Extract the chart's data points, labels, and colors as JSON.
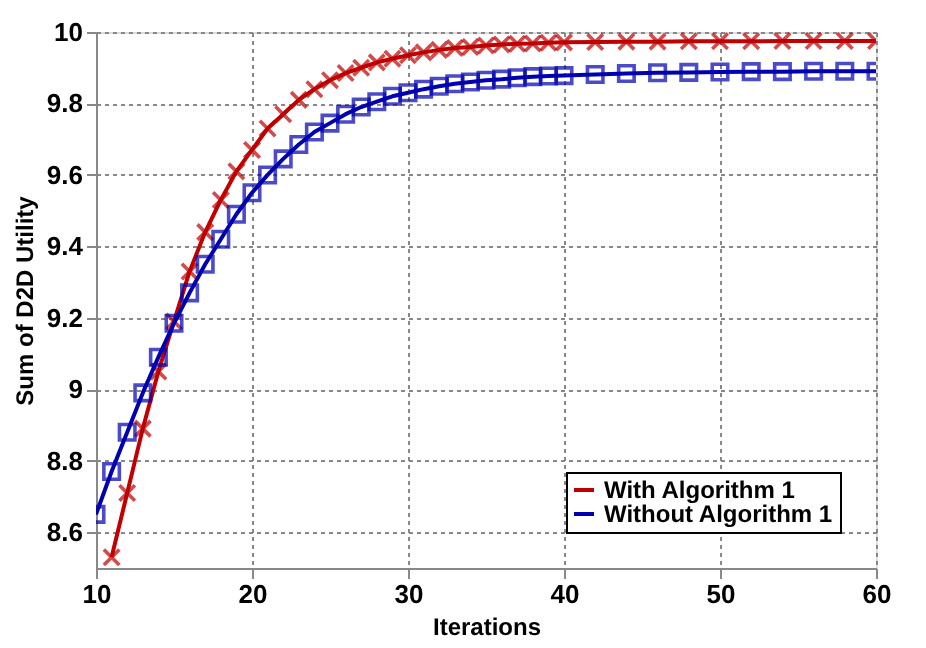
{
  "chart_data": {
    "type": "line",
    "xlabel": "Iterations",
    "ylabel": "Sum of D2D Utility",
    "xlim": [
      10,
      60
    ],
    "xticks": [
      10,
      20,
      30,
      40,
      50,
      60
    ],
    "ylim": [
      8.5,
      10
    ],
    "yticks": [
      8.6,
      8.8,
      9,
      9.2,
      9.4,
      9.6,
      9.8,
      10
    ],
    "grid": true,
    "legend": "bottom right",
    "line_style": "solid",
    "series": [
      {
        "name": "With Algorithm 1",
        "color": "#c00000",
        "marker": "cross",
        "x": [
          11,
          12,
          13,
          14,
          15,
          16,
          17,
          18,
          19,
          20,
          21,
          22,
          23,
          24,
          25,
          26,
          27,
          28,
          29,
          30,
          31,
          32,
          33,
          34,
          35,
          36,
          37,
          38,
          39,
          40,
          42,
          44,
          46,
          48,
          50,
          52,
          54,
          56,
          58,
          60
        ],
        "values": [
          8.53,
          8.71,
          8.89,
          9.05,
          9.19,
          9.33,
          9.44,
          9.53,
          9.61,
          9.67,
          9.73,
          9.77,
          9.81,
          9.84,
          9.865,
          9.885,
          9.9,
          9.915,
          9.925,
          9.935,
          9.943,
          9.95,
          9.955,
          9.958,
          9.962,
          9.965,
          9.967,
          9.968,
          9.97,
          9.971,
          9.972,
          9.973,
          9.973,
          9.974,
          9.974,
          9.974,
          9.975,
          9.975,
          9.975,
          9.975
        ]
      },
      {
        "name": "Without Algorithm 1",
        "color": "#0000b0",
        "marker": "square",
        "x": [
          10,
          11,
          12,
          13,
          14,
          15,
          16,
          17,
          18,
          19,
          20,
          21,
          22,
          23,
          24,
          25,
          26,
          27,
          28,
          29,
          30,
          31,
          32,
          33,
          34,
          35,
          36,
          37,
          38,
          39,
          40,
          42,
          44,
          46,
          48,
          50,
          52,
          54,
          56,
          58,
          60
        ],
        "values": [
          8.65,
          8.77,
          8.88,
          8.99,
          9.09,
          9.185,
          9.27,
          9.35,
          9.42,
          9.49,
          9.55,
          9.6,
          9.645,
          9.685,
          9.72,
          9.745,
          9.77,
          9.79,
          9.805,
          9.82,
          9.83,
          9.84,
          9.848,
          9.855,
          9.86,
          9.865,
          9.868,
          9.872,
          9.875,
          9.877,
          9.878,
          9.881,
          9.884,
          9.886,
          9.887,
          9.888,
          9.889,
          9.889,
          9.89,
          9.89,
          9.89
        ]
      }
    ]
  }
}
